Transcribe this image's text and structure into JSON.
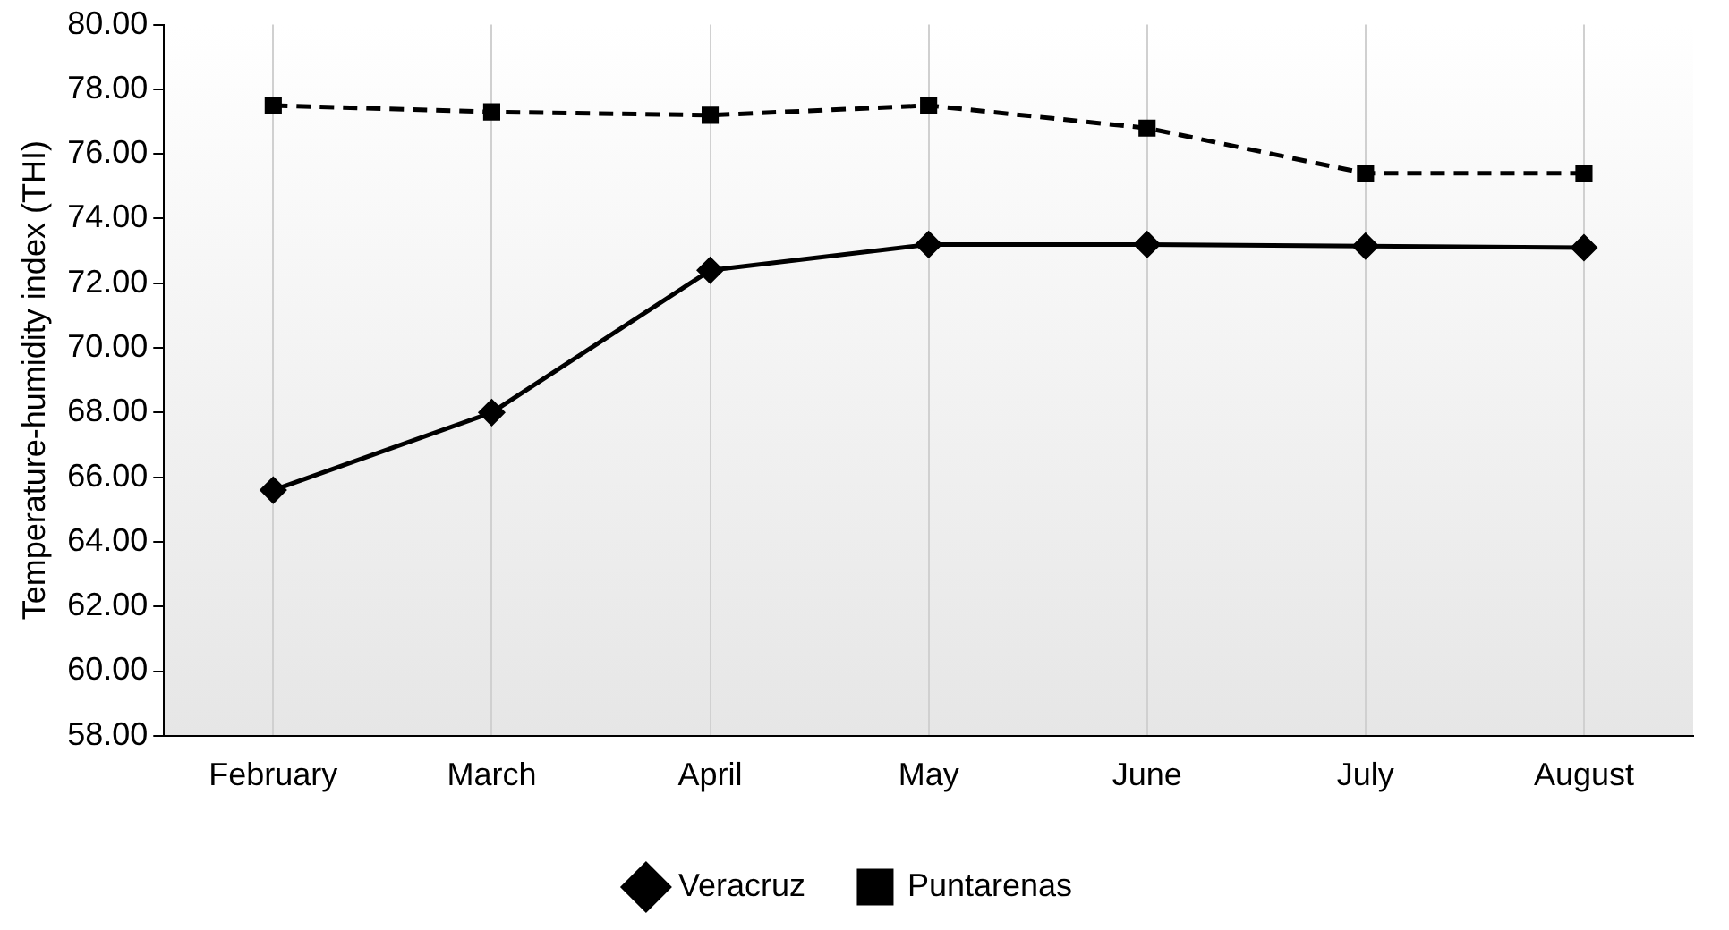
{
  "chart_data": {
    "type": "line",
    "ylabel": "Temperature-humidity index (THI)",
    "categories": [
      "February",
      "March",
      "April",
      "May",
      "June",
      "July",
      "August"
    ],
    "series": [
      {
        "name": "Veracruz",
        "color": "#000000",
        "values": [
          65.6,
          68.0,
          72.4,
          73.2,
          73.2,
          73.15,
          73.1
        ],
        "marker": "diamond",
        "line_style": "solid"
      },
      {
        "name": "Puntarenas",
        "color": "#000000",
        "values": [
          77.5,
          77.3,
          77.2,
          77.5,
          76.8,
          75.4,
          75.4
        ],
        "marker": "square",
        "line_style": "dashed"
      }
    ],
    "ylim": [
      58,
      80
    ],
    "yticks": [
      {
        "value": 58,
        "label": "58.00"
      },
      {
        "value": 60,
        "label": "60.00"
      },
      {
        "value": 62,
        "label": "62.00"
      },
      {
        "value": 64,
        "label": "64.00"
      },
      {
        "value": 66,
        "label": "66.00"
      },
      {
        "value": 68,
        "label": "68.00"
      },
      {
        "value": 70,
        "label": "70.00"
      },
      {
        "value": 72,
        "label": "72.00"
      },
      {
        "value": 74,
        "label": "74.00"
      },
      {
        "value": 76,
        "label": "76.00"
      },
      {
        "value": 78,
        "label": "78.00"
      },
      {
        "value": 80,
        "label": "80.00"
      }
    ],
    "grid": "x",
    "legend": "bottom"
  }
}
